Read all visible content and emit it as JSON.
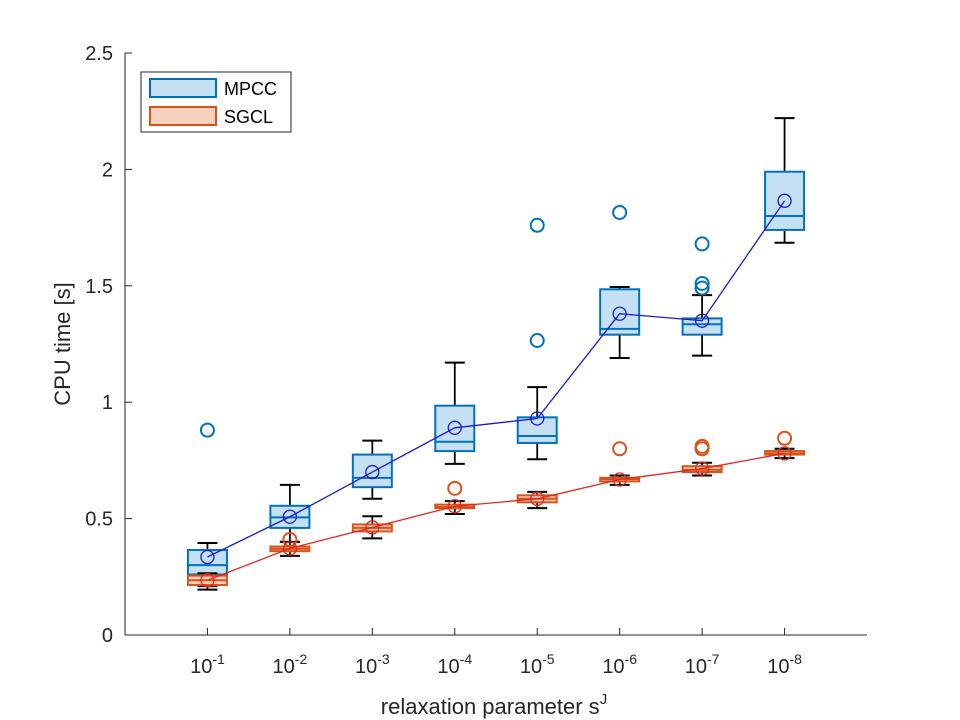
{
  "chart_data": {
    "type": "box",
    "title": "",
    "xlabel": "relaxation parameter s",
    "xlabel_superscript": "J",
    "ylabel": "CPU time [s]",
    "ylim": [
      0,
      2.5
    ],
    "yticks": [
      0,
      0.5,
      1,
      1.5,
      2,
      2.5
    ],
    "ytick_labels": [
      "0",
      "0.5",
      "1",
      "1.5",
      "2",
      "2.5"
    ],
    "categories": [
      "10-1",
      "10-2",
      "10-3",
      "10-4",
      "10-5",
      "10-6",
      "10-7",
      "10-8"
    ],
    "category_labels": [
      {
        "base": "10",
        "exp": "-1"
      },
      {
        "base": "10",
        "exp": "-2"
      },
      {
        "base": "10",
        "exp": "-3"
      },
      {
        "base": "10",
        "exp": "-4"
      },
      {
        "base": "10",
        "exp": "-5"
      },
      {
        "base": "10",
        "exp": "-6"
      },
      {
        "base": "10",
        "exp": "-7"
      },
      {
        "base": "10",
        "exp": "-8"
      }
    ],
    "legend_position": "top-left",
    "series": [
      {
        "name": "MPCC",
        "box_color": "#0072BD",
        "fill_color": "#c6e0f3",
        "mean_color": "#1b1bcc",
        "boxes": [
          {
            "whisker_low": 0.21,
            "q1": 0.26,
            "median": 0.3,
            "q3": 0.365,
            "whisker_high": 0.395,
            "outliers": [
              0.88
            ],
            "mean": 0.335
          },
          {
            "whisker_low": 0.4,
            "q1": 0.46,
            "median": 0.505,
            "q3": 0.555,
            "whisker_high": 0.645,
            "outliers": [],
            "mean": 0.508
          },
          {
            "whisker_low": 0.585,
            "q1": 0.635,
            "median": 0.675,
            "q3": 0.775,
            "whisker_high": 0.835,
            "outliers": [],
            "mean": 0.7
          },
          {
            "whisker_low": 0.735,
            "q1": 0.79,
            "median": 0.83,
            "q3": 0.985,
            "whisker_high": 1.17,
            "outliers": [],
            "mean": 0.89
          },
          {
            "whisker_low": 0.755,
            "q1": 0.825,
            "median": 0.855,
            "q3": 0.935,
            "whisker_high": 1.065,
            "outliers": [
              1.265,
              1.76
            ],
            "mean": 0.93
          },
          {
            "whisker_low": 1.19,
            "q1": 1.29,
            "median": 1.315,
            "q3": 1.485,
            "whisker_high": 1.495,
            "outliers": [
              1.815
            ],
            "mean": 1.38
          },
          {
            "whisker_low": 1.2,
            "q1": 1.29,
            "median": 1.335,
            "q3": 1.36,
            "whisker_high": 1.46,
            "outliers": [
              1.49,
              1.51,
              1.68
            ],
            "mean": 1.35
          },
          {
            "whisker_low": 1.685,
            "q1": 1.74,
            "median": 1.8,
            "q3": 1.99,
            "whisker_high": 2.22,
            "outliers": [],
            "mean": 1.865
          }
        ]
      },
      {
        "name": "SGCL",
        "box_color": "#D95319",
        "fill_color": "#f7d2c0",
        "mean_color": "#e02a1e",
        "boxes": [
          {
            "whisker_low": 0.195,
            "q1": 0.215,
            "median": 0.235,
            "q3": 0.255,
            "whisker_high": 0.265,
            "outliers": [],
            "mean": 0.235
          },
          {
            "whisker_low": 0.34,
            "q1": 0.36,
            "median": 0.37,
            "q3": 0.38,
            "whisker_high": 0.4,
            "outliers": [
              0.41
            ],
            "mean": 0.372
          },
          {
            "whisker_low": 0.415,
            "q1": 0.445,
            "median": 0.46,
            "q3": 0.475,
            "whisker_high": 0.51,
            "outliers": [],
            "mean": 0.462
          },
          {
            "whisker_low": 0.52,
            "q1": 0.545,
            "median": 0.55,
            "q3": 0.56,
            "whisker_high": 0.575,
            "outliers": [
              0.63
            ],
            "mean": 0.553
          },
          {
            "whisker_low": 0.545,
            "q1": 0.57,
            "median": 0.585,
            "q3": 0.6,
            "whisker_high": 0.615,
            "outliers": [],
            "mean": 0.585
          },
          {
            "whisker_low": 0.645,
            "q1": 0.66,
            "median": 0.67,
            "q3": 0.675,
            "whisker_high": 0.685,
            "outliers": [
              0.8
            ],
            "mean": 0.668
          },
          {
            "whisker_low": 0.685,
            "q1": 0.7,
            "median": 0.71,
            "q3": 0.725,
            "whisker_high": 0.74,
            "outliers": [
              0.8,
              0.81
            ],
            "mean": 0.715
          },
          {
            "whisker_low": 0.76,
            "q1": 0.775,
            "median": 0.78,
            "q3": 0.79,
            "whisker_high": 0.8,
            "outliers": [
              0.845
            ],
            "mean": 0.78
          }
        ]
      }
    ]
  }
}
